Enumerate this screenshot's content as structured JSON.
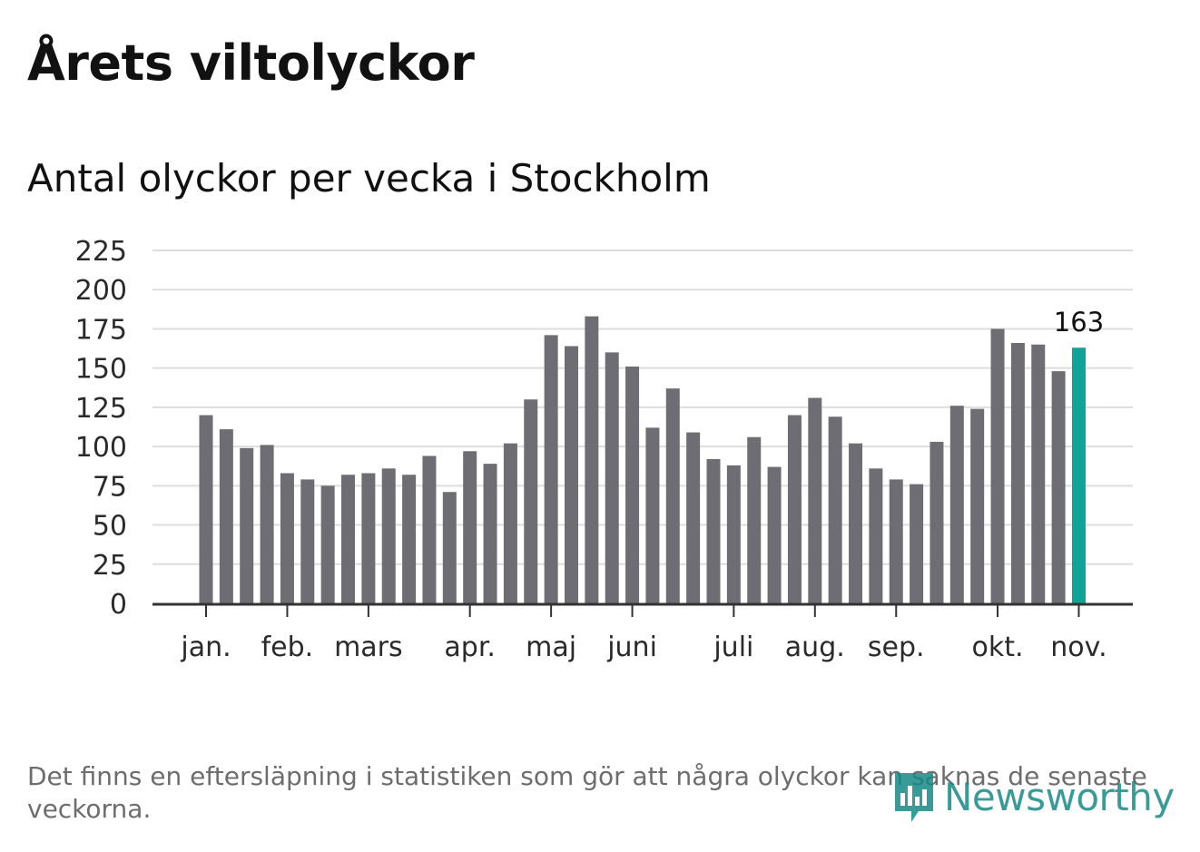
{
  "title": "Årets viltolyckor",
  "subtitle": "Antal olyckor per vecka i Stockholm",
  "footnote": "Det finns en eftersläpning i statistiken som gör att några olyckor kan saknas de senaste veckorna.",
  "brand": {
    "name": "Newsworthy",
    "icon": "newsworthy-logo-icon",
    "color": "#178a86"
  },
  "colors": {
    "bar": "#6e6d73",
    "highlight": "#0fa39a",
    "grid": "#dddddd",
    "axis": "#333333"
  },
  "chart_data": {
    "type": "bar",
    "title": "Antal olyckor per vecka i Stockholm",
    "xlabel": "",
    "ylabel": "",
    "ylim": [
      0,
      225
    ],
    "yticks": [
      0,
      25,
      50,
      75,
      100,
      125,
      150,
      175,
      200,
      225
    ],
    "grid": true,
    "values": [
      120,
      111,
      99,
      101,
      83,
      79,
      75,
      82,
      83,
      86,
      82,
      94,
      71,
      97,
      89,
      102,
      130,
      171,
      164,
      183,
      160,
      151,
      112,
      137,
      109,
      92,
      88,
      106,
      87,
      120,
      131,
      119,
      102,
      86,
      79,
      76,
      103,
      126,
      124,
      175,
      166,
      165,
      148,
      163
    ],
    "highlight_index": 43,
    "highlight_label": "163",
    "month_ticks": [
      {
        "label": "jan.",
        "week_index": 0
      },
      {
        "label": "feb.",
        "week_index": 4
      },
      {
        "label": "mars",
        "week_index": 8
      },
      {
        "label": "apr.",
        "week_index": 13
      },
      {
        "label": "maj",
        "week_index": 17
      },
      {
        "label": "juni",
        "week_index": 21
      },
      {
        "label": "juli",
        "week_index": 26
      },
      {
        "label": "aug.",
        "week_index": 30
      },
      {
        "label": "sep.",
        "week_index": 34
      },
      {
        "label": "okt.",
        "week_index": 39
      },
      {
        "label": "nov.",
        "week_index": 43
      }
    ]
  }
}
